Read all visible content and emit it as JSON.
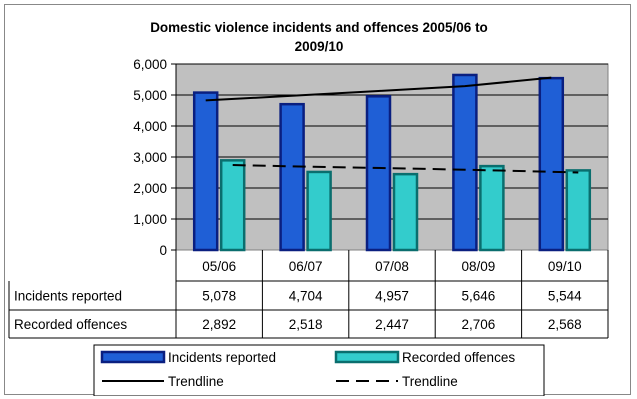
{
  "chart_data": {
    "type": "bar",
    "title_lines": [
      "Domestic violence incidents and offences 2005/06 to",
      "2009/10"
    ],
    "xlabel": "",
    "ylabel": "",
    "categories": [
      "05/06",
      "06/07",
      "07/08",
      "08/09",
      "09/10"
    ],
    "ylim": [
      0,
      6000
    ],
    "yticks": [
      0,
      1000,
      2000,
      3000,
      4000,
      5000,
      6000
    ],
    "ytick_labels": [
      "0",
      "1,000",
      "2,000",
      "3,000",
      "4,000",
      "5,000",
      "6,000"
    ],
    "grid": true,
    "series": [
      {
        "name": "Incidents reported",
        "values": [
          5078,
          4704,
          4957,
          5646,
          5544
        ],
        "value_labels": [
          "5,078",
          "4,704",
          "4,957",
          "5,646",
          "5,544"
        ],
        "color": "#1f5fd6",
        "edge_color": "#0a1f80"
      },
      {
        "name": "Recorded offences",
        "values": [
          2892,
          2518,
          2447,
          2706,
          2568
        ],
        "value_labels": [
          "2,892",
          "2,518",
          "2,447",
          "2,706",
          "2,568"
        ],
        "color": "#33cccc",
        "edge_color": "#0a6e6e"
      }
    ],
    "trendlines": [
      {
        "name": "Trendline",
        "series": "Incidents reported",
        "style": "solid",
        "values": [
          4825,
          4975,
          5130,
          5285,
          5560
        ]
      },
      {
        "name": "Trendline",
        "series": "Recorded offences",
        "style": "dashed",
        "values": [
          2740,
          2680,
          2630,
          2570,
          2500
        ]
      }
    ],
    "plot_background": "#c0c0c0",
    "legend_position": "bottom",
    "has_data_table": true
  }
}
